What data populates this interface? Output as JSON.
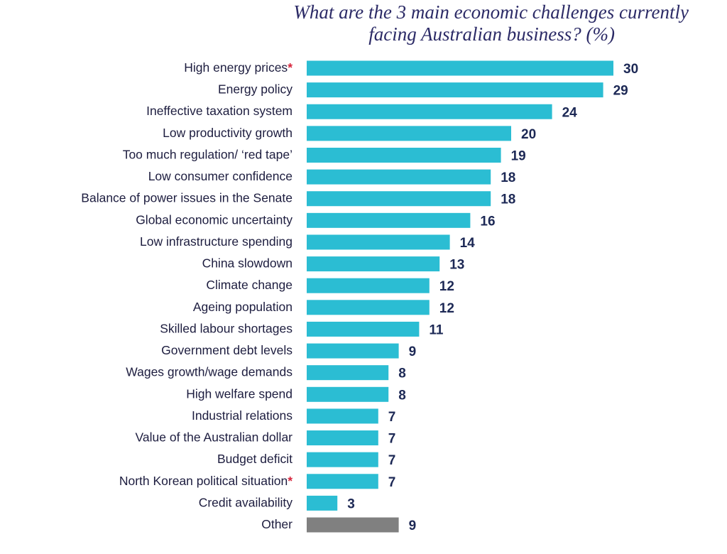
{
  "chart_data": {
    "type": "hbar",
    "title": [
      "What are the 3 main economic challenges currently",
      "facing Australian business? (%)"
    ],
    "categories": [
      "High energy prices",
      "Energy policy",
      "Ineffective taxation system",
      "Low productivity growth",
      "Too much regulation/ ‘red tape’",
      "Low consumer confidence",
      "Balance of power issues in the Senate",
      "Global economic uncertainty",
      "Low infrastructure spending",
      "China slowdown",
      "Climate change",
      "Ageing population",
      "Skilled labour shortages",
      "Government debt levels",
      "Wages growth/wage demands",
      "High welfare spend",
      "Industrial relations",
      "Value of the Australian dollar",
      "Budget deficit",
      "North Korean political situation",
      "Credit availability",
      "Other"
    ],
    "category_notes": [
      "*",
      null,
      null,
      null,
      null,
      null,
      null,
      null,
      null,
      null,
      null,
      null,
      null,
      null,
      null,
      null,
      null,
      null,
      null,
      "*",
      null,
      null
    ],
    "values": [
      30,
      29,
      24,
      20,
      19,
      18,
      18,
      16,
      14,
      13,
      12,
      12,
      11,
      9,
      8,
      8,
      7,
      7,
      7,
      7,
      3,
      9
    ],
    "colors": [
      "#2bbdd3",
      "#2bbdd3",
      "#2bbdd3",
      "#2bbdd3",
      "#2bbdd3",
      "#2bbdd3",
      "#2bbdd3",
      "#2bbdd3",
      "#2bbdd3",
      "#2bbdd3",
      "#2bbdd3",
      "#2bbdd3",
      "#2bbdd3",
      "#2bbdd3",
      "#2bbdd3",
      "#2bbdd3",
      "#2bbdd3",
      "#2bbdd3",
      "#2bbdd3",
      "#2bbdd3",
      "#2bbdd3",
      "#808080"
    ],
    "xlim": [
      0,
      30
    ]
  }
}
